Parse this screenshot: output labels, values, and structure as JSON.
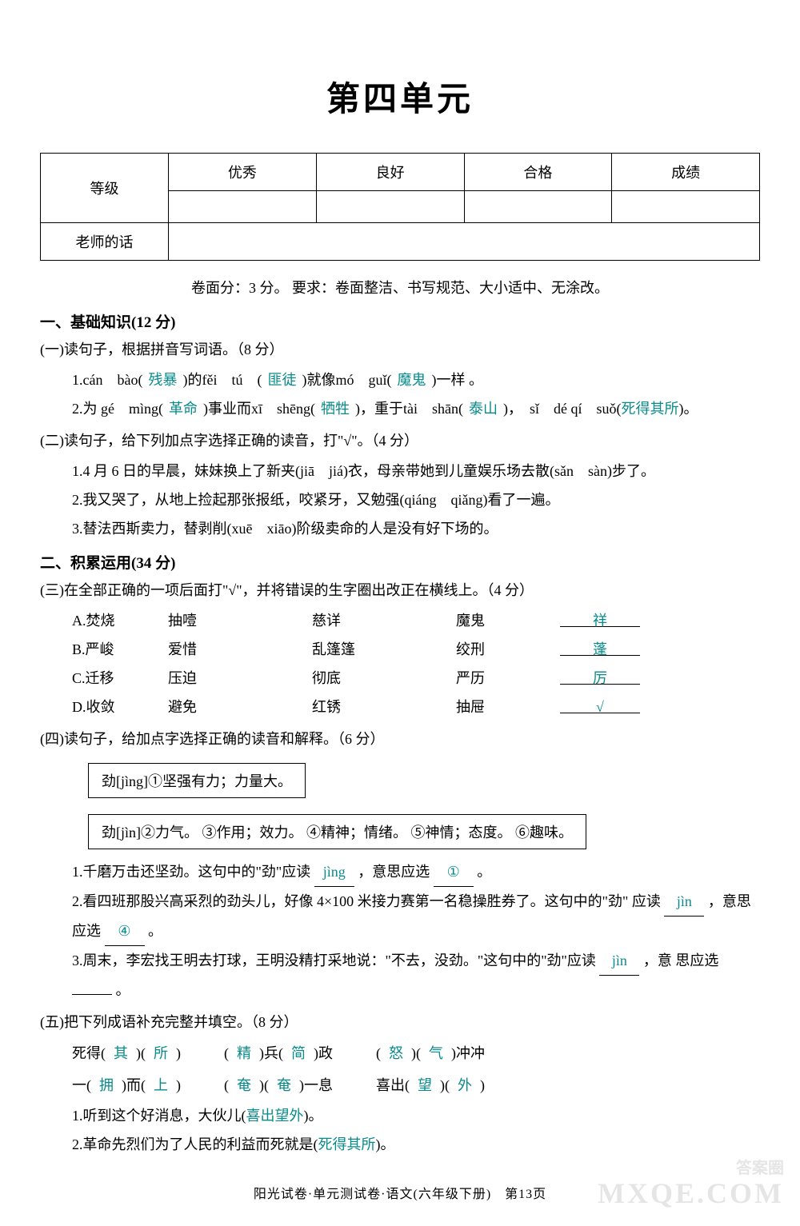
{
  "title": "第四单元",
  "grade_table": {
    "headers": [
      "等级",
      "优秀",
      "良好",
      "合格",
      "成绩"
    ],
    "teacher_label": "老师的话"
  },
  "instruction": "卷面分：3 分。 要求：卷面整洁、书写规范、大小适中、无涂改。",
  "section1": {
    "head": "一、基础知识(12 分)",
    "sub1": {
      "title": "(一)读句子，根据拼音写词语。（8 分）",
      "q1_pre": "1.cán　bào(",
      "q1_a1": "残暴",
      "q1_mid1": ")的fěi　tú　(",
      "q1_a2": "匪徒",
      "q1_mid2": ")就像mó　guǐ(",
      "q1_a3": "魔鬼",
      "q1_end": ")一样 。",
      "q2_pre": "2.为 gé　mìng(",
      "q2_a1": "革命",
      "q2_mid1": ")事业而xī　shēng(",
      "q2_a2": "牺牲",
      "q2_mid2": ")，重于tài　shān(",
      "q2_a3": "泰山",
      "q2_mid3": ")，　sǐ　dé qí　suǒ(",
      "q2_a4": "死得其所",
      "q2_end": ")。"
    },
    "sub2": {
      "title": "(二)读句子，给下列加点字选择正确的读音，打\"√\"。（4 分）",
      "q1": "1.4 月 6 日的早晨，妹妹换上了新夹(jiā　jiá)衣，母亲带她到儿童娱乐场去散(sǎn　sàn)步了。",
      "q2": "2.我又哭了，从地上捡起那张报纸，咬紧牙，又勉强(qiáng　qiǎng)看了一遍。",
      "q3": "3.替法西斯卖力，替剥削(xuē　xiāo)阶级卖命的人是没有好下场的。"
    }
  },
  "section2": {
    "head": "二、积累运用(34 分)",
    "sub3": {
      "title": "(三)在全部正确的一项后面打\"√\"，并将错误的生字圈出改正在横线上。（4 分）",
      "rows": [
        {
          "l": "A.焚烧",
          "w1": "抽噎",
          "w2": "慈详",
          "w3": "魔鬼",
          "ans": "祥"
        },
        {
          "l": "B.严峻",
          "w1": "爱惜",
          "w2": "乱篷篷",
          "w3": "绞刑",
          "ans": "蓬"
        },
        {
          "l": "C.迁移",
          "w1": "压迫",
          "w2": "彻底",
          "w3": "严历",
          "ans": "厉"
        },
        {
          "l": "D.收敛",
          "w1": "避免",
          "w2": "红锈",
          "w3": "抽屉",
          "ans": "√"
        }
      ]
    },
    "sub4": {
      "title": "(四)读句子，给加点字选择正确的读音和解释。（6 分）",
      "def1": "劲[jìng]①坚强有力；力量大。",
      "def2": "劲[jìn]②力气。 ③作用；效力。 ④精神；情绪。 ⑤神情；态度。 ⑥趣味。",
      "q1_pre": "1.千磨万击还坚劲。这句中的\"劲\"应读",
      "q1_a1": "jìng",
      "q1_mid": "，意思应选",
      "q1_a2": "①",
      "q1_end": "。",
      "q2_pre": "2.看四班那股兴高采烈的劲头儿，好像 4×100 米接力赛第一名稳操胜券了。这句中的\"劲\" 应读",
      "q2_a1": "jìn",
      "q2_mid": "，意思应选",
      "q2_a2": "④",
      "q2_end": "。",
      "q3_pre": "3.周末，李宏找王明去打球，王明没精打采地说：\"不去，没劲。\"这句中的\"劲\"应读",
      "q3_a1": "jìn",
      "q3_mid": "，意 思应选",
      "q3_a2": "",
      "q3_end": "。"
    },
    "sub5": {
      "title": "(五)把下列成语补充完整并填空。（8 分）",
      "r1a1": "其",
      "r1a2": "所",
      "r1a3": "精",
      "r1a4": "简",
      "r1a5": "怒",
      "r1a6": "气",
      "r2a1": "拥",
      "r2a2": "上",
      "r2a3": "奄",
      "r2a4": "奄",
      "r2a5": "望",
      "r2a6": "外",
      "s1_pre": "1.听到这个好消息，大伙儿(",
      "s1_ans": "喜出望外",
      "s1_end": ")。",
      "s2_pre": "2.革命先烈们为了人民的利益而死就是(",
      "s2_ans": "死得其所",
      "s2_end": ")。"
    }
  },
  "footer": "阳光试卷·单元测试卷·语文(六年级下册)　第13页",
  "watermark1": "答案圈",
  "watermark2": "MXQE.COM"
}
